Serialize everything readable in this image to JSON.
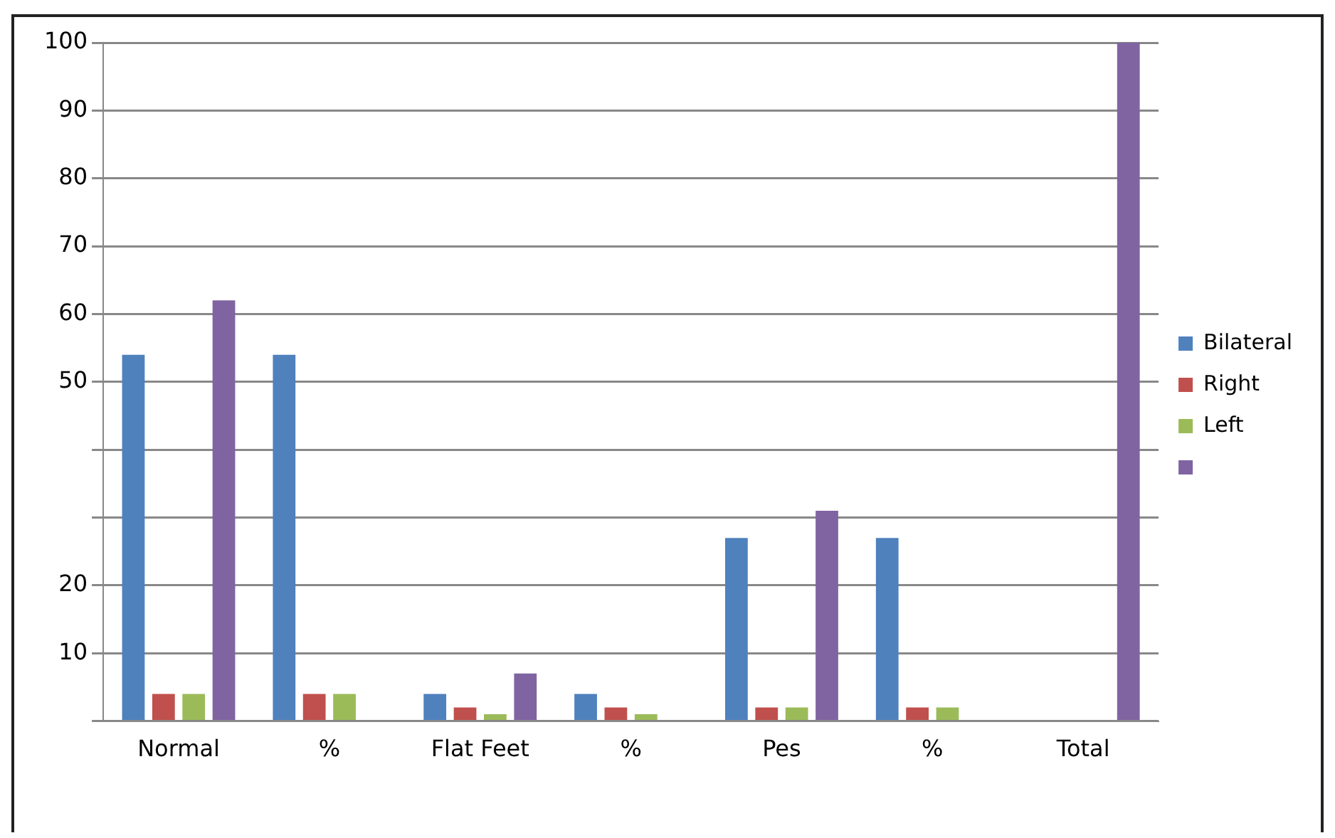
{
  "chart_data": {
    "type": "bar",
    "categories": [
      "Normal",
      "%",
      "Flat Feet",
      "%",
      "Pes",
      "%",
      "Total"
    ],
    "series": [
      {
        "name": "Bilateral",
        "color": "#4f81bd",
        "values": [
          54,
          54,
          4,
          4,
          27,
          27,
          null
        ]
      },
      {
        "name": "Right",
        "color": "#c0504d",
        "values": [
          4,
          4,
          2,
          2,
          2,
          2,
          null
        ]
      },
      {
        "name": "Left",
        "color": "#9bbb59",
        "values": [
          4,
          4,
          1,
          1,
          2,
          2,
          null
        ]
      },
      {
        "color": "#8064a2",
        "values": [
          62,
          null,
          7,
          null,
          31,
          null,
          100
        ]
      }
    ],
    "ylim": [
      0,
      100
    ],
    "yticks": [
      {
        "value": 0,
        "label": null
      },
      10,
      20,
      {
        "value": 30,
        "label": null
      },
      {
        "value": 40,
        "label": null
      },
      50,
      60,
      70,
      80,
      90,
      100
    ],
    "grid": "y",
    "legend": "right"
  }
}
